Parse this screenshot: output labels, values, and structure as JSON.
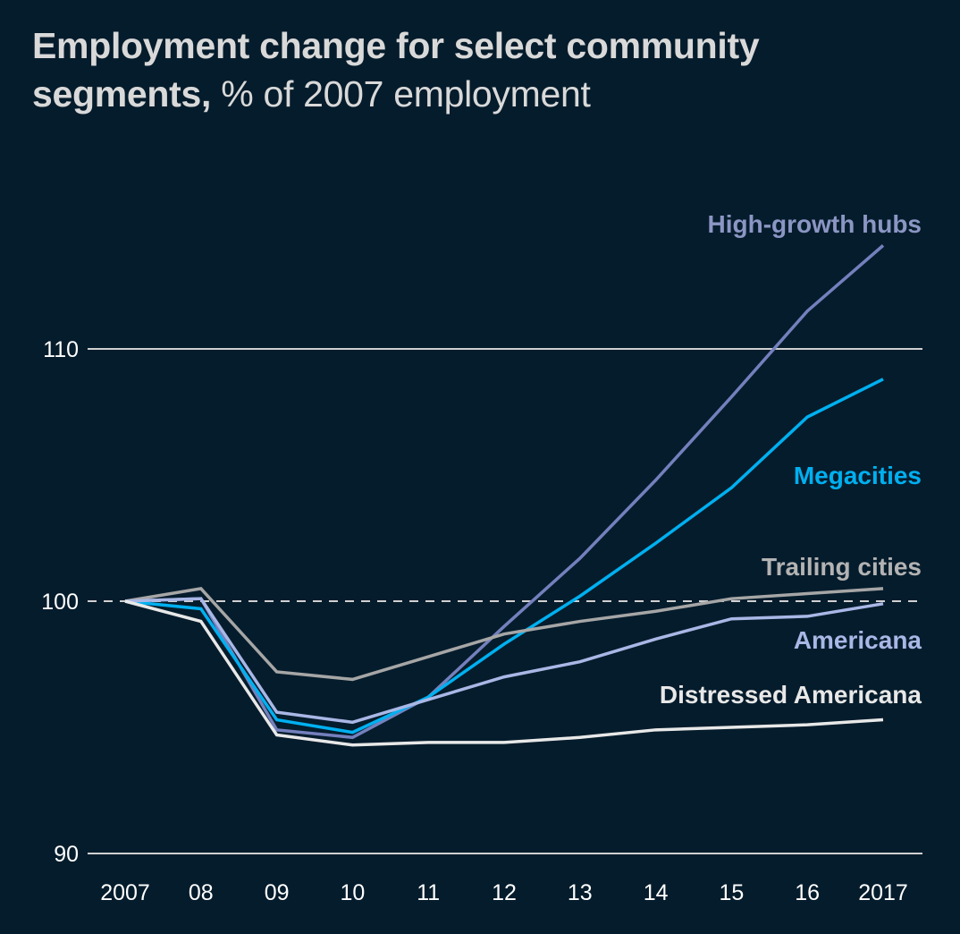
{
  "title": {
    "bold": "Employment change for select community segments,",
    "light": " % of 2007 employment"
  },
  "colors": {
    "background": "#051c2c",
    "gridline": "#d0d0d0",
    "baseline_dashed": "#d0d0d0"
  },
  "chart_data": {
    "type": "line",
    "title": "Employment change for select community segments, % of 2007 employment",
    "xlabel": "",
    "ylabel": "% of 2007 employment",
    "x": [
      "2007",
      "08",
      "09",
      "10",
      "11",
      "12",
      "13",
      "14",
      "15",
      "16",
      "2017"
    ],
    "ylim": [
      90,
      115
    ],
    "yticks": [
      90,
      100,
      110
    ],
    "ytick_labels": [
      "90",
      "100",
      "110"
    ],
    "reference_line": {
      "value": 100,
      "style": "dashed"
    },
    "grid": "horizontal at 90 and 110",
    "legend": "direct labels at line ends (right)",
    "series": [
      {
        "name": "High-growth hubs",
        "color": "#7480bd",
        "label_color": "#8b96c4",
        "values": [
          100.0,
          100.1,
          94.9,
          94.6,
          96.2,
          99.0,
          101.7,
          104.8,
          108.1,
          111.5,
          114.1
        ]
      },
      {
        "name": "Megacities",
        "color": "#00b0f0",
        "label_color": "#00b0f0",
        "values": [
          100.0,
          99.7,
          95.3,
          94.8,
          96.2,
          98.3,
          100.2,
          102.3,
          104.5,
          107.3,
          108.8
        ]
      },
      {
        "name": "Trailing cities",
        "color": "#a6a6a6",
        "label_color": "#b3b3b3",
        "values": [
          100.0,
          100.5,
          97.2,
          96.9,
          97.8,
          98.7,
          99.2,
          99.6,
          100.1,
          100.3,
          100.5
        ]
      },
      {
        "name": "Americana",
        "color": "#a9b7e6",
        "label_color": "#a9b7e6",
        "values": [
          100.0,
          100.1,
          95.6,
          95.2,
          96.1,
          97.0,
          97.6,
          98.5,
          99.3,
          99.4,
          99.9
        ]
      },
      {
        "name": "Distressed Americana",
        "color": "#e8e8e8",
        "label_color": "#e8e8e8",
        "values": [
          100.0,
          99.2,
          94.7,
          94.3,
          94.4,
          94.4,
          94.6,
          94.9,
          95.0,
          95.1,
          95.3
        ]
      }
    ]
  }
}
